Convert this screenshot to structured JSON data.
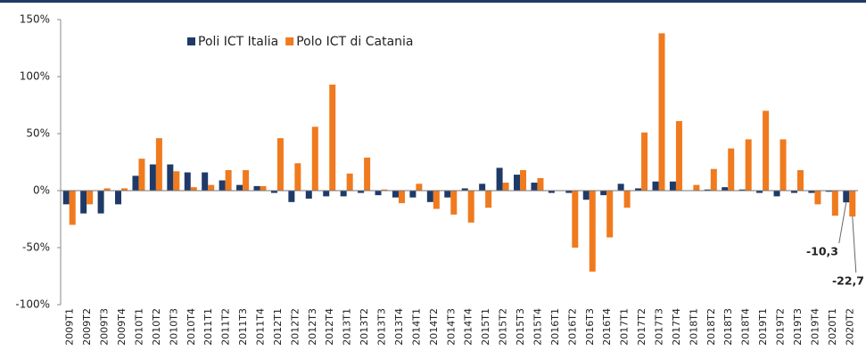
{
  "chart_data": {
    "type": "bar",
    "categories": [
      "2009T1",
      "2009T2",
      "2009T3",
      "2009T4",
      "2010T1",
      "2010T2",
      "2010T3",
      "2010T4",
      "2011T1",
      "2011T2",
      "2011T3",
      "2011T4",
      "2012T1",
      "2012T2",
      "2012T3",
      "2012T4",
      "2013T1",
      "2013T2",
      "2013T3",
      "2013T4",
      "2014T1",
      "2014T2",
      "2014T3",
      "2014T4",
      "2015T1",
      "2015T2",
      "2015T3",
      "2015T4",
      "2016T1",
      "2016T2",
      "2016T3",
      "2016T4",
      "2017T1",
      "2017T2",
      "2017T3",
      "2017T4",
      "2018T1",
      "2018T2",
      "2018T3",
      "2018T4",
      "2019T1",
      "2019T2",
      "2019T3",
      "2019T4",
      "2020T1",
      "2020T2"
    ],
    "series": [
      {
        "name": "Poli ICT Italia",
        "color": "#1f3a68",
        "values": [
          -12,
          -20,
          -20,
          -12,
          13,
          23,
          23,
          16,
          16,
          9,
          5,
          4,
          -2,
          -10,
          -7,
          -5,
          -5,
          -2,
          -4,
          -6,
          -6,
          -10,
          -6,
          2,
          6,
          20,
          14,
          7,
          -2,
          -2,
          -8,
          -4,
          6,
          2,
          8,
          8,
          0,
          1,
          3,
          1,
          -2,
          -5,
          -2,
          -2,
          -1,
          -10.3
        ],
        "value_labels": [
          null,
          null,
          null,
          null,
          null,
          null,
          null,
          null,
          null,
          null,
          null,
          null,
          null,
          null,
          null,
          null,
          null,
          null,
          null,
          null,
          null,
          null,
          null,
          null,
          null,
          null,
          null,
          null,
          null,
          null,
          null,
          null,
          null,
          null,
          null,
          null,
          null,
          null,
          null,
          null,
          null,
          null,
          null,
          null,
          null,
          "-10,3"
        ]
      },
      {
        "name": "Polo ICT di Catania",
        "color": "#f07a1e",
        "values": [
          -30,
          -12,
          2,
          2,
          28,
          46,
          17,
          3,
          5,
          18,
          18,
          4,
          46,
          24,
          56,
          93,
          15,
          29,
          1,
          -11,
          6,
          -16,
          -21,
          -28,
          -15,
          7,
          18,
          11,
          0,
          -50,
          -71,
          -41,
          -15,
          51,
          138,
          61,
          5,
          19,
          37,
          45,
          70,
          45,
          18,
          -12,
          -22,
          -22.7
        ],
        "value_labels": [
          null,
          null,
          null,
          null,
          null,
          null,
          null,
          null,
          null,
          null,
          null,
          null,
          null,
          null,
          null,
          null,
          null,
          null,
          null,
          null,
          null,
          null,
          null,
          null,
          null,
          null,
          null,
          null,
          null,
          null,
          null,
          null,
          null,
          null,
          null,
          null,
          null,
          null,
          null,
          null,
          null,
          null,
          null,
          null,
          null,
          "-22,7"
        ]
      }
    ],
    "ylim": [
      -100,
      150
    ],
    "yticks": [
      {
        "value": -100,
        "label": "-100%"
      },
      {
        "value": -50,
        "label": "-50%"
      },
      {
        "value": 0,
        "label": "0%"
      },
      {
        "value": 50,
        "label": "50%"
      },
      {
        "value": 100,
        "label": "100%"
      },
      {
        "value": 150,
        "label": "150%"
      }
    ],
    "legend": "top-left"
  }
}
